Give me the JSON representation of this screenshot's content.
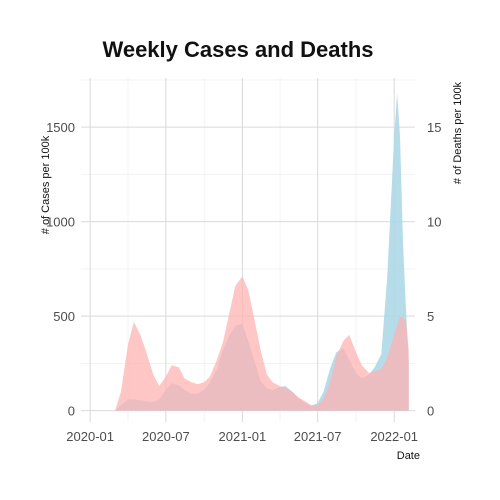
{
  "chart_data": {
    "type": "area",
    "title": "Weekly Cases and Deaths",
    "xlabel": "Date",
    "ylabel": "# of Cases per 100k",
    "ylabel_right": "# of Deaths per 100k",
    "x_type": "date",
    "xlim": [
      "2019-12-10",
      "2022-02-20"
    ],
    "ylim": [
      -60,
      1760
    ],
    "ylim_right": [
      -0.6,
      17.6
    ],
    "x_ticks": [
      "2020-01-01",
      "2020-07-01",
      "2021-01-01",
      "2021-07-01",
      "2022-01-01"
    ],
    "x_tick_labels": [
      "2020-01",
      "2020-07",
      "2021-01",
      "2021-07",
      "2022-01"
    ],
    "y_ticks": [
      0,
      500,
      1000,
      1500
    ],
    "y_ticks_right": [
      0,
      5,
      10,
      15
    ],
    "grid": true,
    "legend": "none",
    "series": [
      {
        "axis": "left",
        "color": "#add8e6",
        "opacity": 0.9,
        "points": [
          [
            "2020-03-01",
            0
          ],
          [
            "2020-03-15",
            30
          ],
          [
            "2020-04-01",
            60
          ],
          [
            "2020-04-15",
            60
          ],
          [
            "2020-05-01",
            55
          ],
          [
            "2020-05-15",
            50
          ],
          [
            "2020-06-01",
            45
          ],
          [
            "2020-06-15",
            60
          ],
          [
            "2020-07-01",
            110
          ],
          [
            "2020-07-15",
            145
          ],
          [
            "2020-08-01",
            135
          ],
          [
            "2020-08-15",
            110
          ],
          [
            "2020-09-01",
            90
          ],
          [
            "2020-09-15",
            90
          ],
          [
            "2020-10-01",
            110
          ],
          [
            "2020-10-15",
            150
          ],
          [
            "2020-11-01",
            220
          ],
          [
            "2020-11-15",
            320
          ],
          [
            "2020-12-01",
            400
          ],
          [
            "2020-12-15",
            450
          ],
          [
            "2021-01-01",
            460
          ],
          [
            "2021-01-15",
            370
          ],
          [
            "2021-02-01",
            250
          ],
          [
            "2021-02-15",
            150
          ],
          [
            "2021-03-01",
            120
          ],
          [
            "2021-03-15",
            110
          ],
          [
            "2021-04-01",
            125
          ],
          [
            "2021-04-15",
            130
          ],
          [
            "2021-05-01",
            100
          ],
          [
            "2021-05-15",
            70
          ],
          [
            "2021-06-01",
            40
          ],
          [
            "2021-06-15",
            25
          ],
          [
            "2021-07-01",
            40
          ],
          [
            "2021-07-15",
            100
          ],
          [
            "2021-08-01",
            230
          ],
          [
            "2021-08-15",
            310
          ],
          [
            "2021-09-01",
            330
          ],
          [
            "2021-09-15",
            270
          ],
          [
            "2021-10-01",
            200
          ],
          [
            "2021-10-15",
            170
          ],
          [
            "2021-11-01",
            190
          ],
          [
            "2021-11-15",
            230
          ],
          [
            "2021-12-01",
            300
          ],
          [
            "2021-12-15",
            700
          ],
          [
            "2022-01-01",
            1450
          ],
          [
            "2022-01-08",
            1680
          ],
          [
            "2022-01-15",
            1450
          ],
          [
            "2022-01-22",
            900
          ],
          [
            "2022-01-29",
            550
          ],
          [
            "2022-02-05",
            250
          ]
        ]
      },
      {
        "axis": "right",
        "color": "#ffb3b3",
        "opacity": 0.75,
        "points": [
          [
            "2020-03-01",
            0
          ],
          [
            "2020-03-15",
            1.0
          ],
          [
            "2020-04-01",
            3.5
          ],
          [
            "2020-04-15",
            4.7
          ],
          [
            "2020-05-01",
            4.0
          ],
          [
            "2020-05-15",
            3.1
          ],
          [
            "2020-06-01",
            1.9
          ],
          [
            "2020-06-15",
            1.3
          ],
          [
            "2020-07-01",
            1.8
          ],
          [
            "2020-07-15",
            2.4
          ],
          [
            "2020-08-01",
            2.3
          ],
          [
            "2020-08-15",
            1.7
          ],
          [
            "2020-09-01",
            1.5
          ],
          [
            "2020-09-15",
            1.4
          ],
          [
            "2020-10-01",
            1.5
          ],
          [
            "2020-10-15",
            1.8
          ],
          [
            "2020-11-01",
            2.7
          ],
          [
            "2020-11-15",
            3.6
          ],
          [
            "2020-12-01",
            5.2
          ],
          [
            "2020-12-15",
            6.6
          ],
          [
            "2021-01-01",
            7.1
          ],
          [
            "2021-01-15",
            6.4
          ],
          [
            "2021-02-01",
            4.6
          ],
          [
            "2021-02-15",
            3.1
          ],
          [
            "2021-03-01",
            1.9
          ],
          [
            "2021-03-15",
            1.5
          ],
          [
            "2021-04-01",
            1.3
          ],
          [
            "2021-04-15",
            1.2
          ],
          [
            "2021-05-01",
            1.0
          ],
          [
            "2021-05-15",
            0.7
          ],
          [
            "2021-06-01",
            0.5
          ],
          [
            "2021-06-15",
            0.3
          ],
          [
            "2021-07-01",
            0.3
          ],
          [
            "2021-07-15",
            0.6
          ],
          [
            "2021-08-01",
            1.6
          ],
          [
            "2021-08-15",
            2.9
          ],
          [
            "2021-09-01",
            3.7
          ],
          [
            "2021-09-15",
            4.0
          ],
          [
            "2021-10-01",
            3.1
          ],
          [
            "2021-10-15",
            2.4
          ],
          [
            "2021-11-01",
            2.0
          ],
          [
            "2021-11-15",
            2.1
          ],
          [
            "2021-12-01",
            2.2
          ],
          [
            "2021-12-15",
            2.8
          ],
          [
            "2022-01-01",
            4.0
          ],
          [
            "2022-01-15",
            5.0
          ],
          [
            "2022-01-29",
            4.8
          ],
          [
            "2022-02-05",
            3.2
          ]
        ]
      }
    ]
  }
}
